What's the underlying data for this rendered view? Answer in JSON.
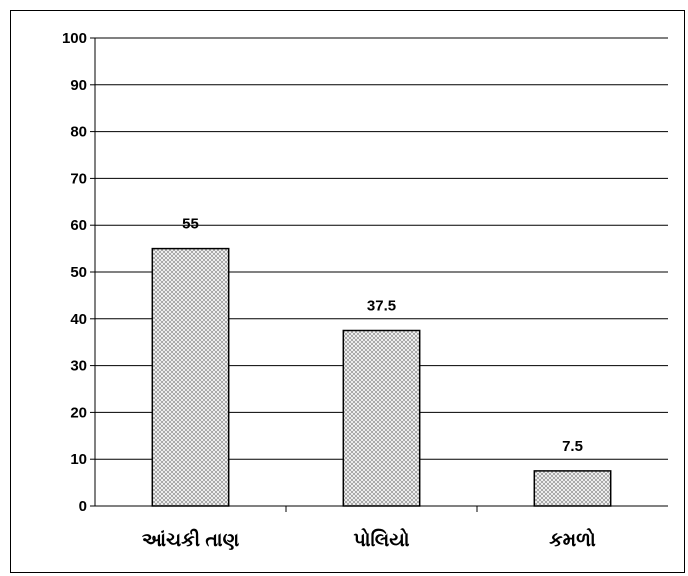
{
  "chart_data": {
    "type": "bar",
    "categories": [
      "આંચકી તાણ",
      "પોલિયો",
      "કમળો"
    ],
    "values": [
      55,
      37.5,
      7.5
    ],
    "data_labels": [
      "55",
      "37.5",
      "7.5"
    ],
    "title": "",
    "xlabel": "",
    "ylabel": "",
    "ylim": [
      0,
      100
    ],
    "yticks": [
      0,
      10,
      20,
      30,
      40,
      50,
      60,
      70,
      80,
      90,
      100
    ],
    "grid": true,
    "legend": "none",
    "bar_fill": "crosshatch",
    "colors": {
      "bar_fill": "#ffffff",
      "bar_hatch": "#9a9a9a",
      "bar_stroke": "#000000",
      "grid": "#000000",
      "axis": "#000000"
    }
  }
}
